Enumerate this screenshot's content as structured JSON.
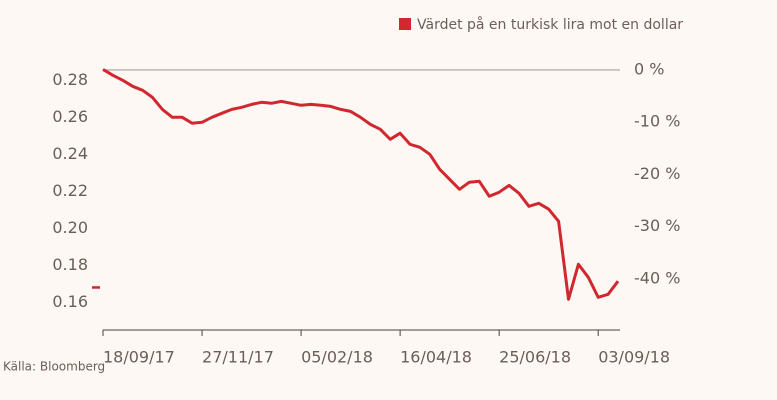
{
  "chart_data": {
    "type": "line",
    "legend": "top-right",
    "source": "Källa: Bloomberg",
    "x": [
      "2017-09-18",
      "2017-09-25",
      "2017-10-02",
      "2017-10-09",
      "2017-10-16",
      "2017-10-23",
      "2017-10-30",
      "2017-11-06",
      "2017-11-13",
      "2017-11-20",
      "2017-11-27",
      "2017-12-04",
      "2017-12-11",
      "2017-12-18",
      "2017-12-25",
      "2018-01-01",
      "2018-01-08",
      "2018-01-15",
      "2018-01-22",
      "2018-01-29",
      "2018-02-05",
      "2018-02-12",
      "2018-02-19",
      "2018-02-26",
      "2018-03-05",
      "2018-03-12",
      "2018-03-19",
      "2018-03-26",
      "2018-04-02",
      "2018-04-09",
      "2018-04-16",
      "2018-04-23",
      "2018-04-30",
      "2018-05-07",
      "2018-05-14",
      "2018-05-21",
      "2018-05-28",
      "2018-06-04",
      "2018-06-11",
      "2018-06-18",
      "2018-06-25",
      "2018-07-02",
      "2018-07-09",
      "2018-07-16",
      "2018-07-23",
      "2018-07-30",
      "2018-08-06",
      "2018-08-13",
      "2018-08-20",
      "2018-08-27",
      "2018-09-03",
      "2018-09-10",
      "2018-09-17"
    ],
    "series": [
      {
        "name": "Värdet på en turkisk lira mot en dollar",
        "color": "#d0282e",
        "values": [
          0.2859,
          0.2827,
          0.28,
          0.2768,
          0.2746,
          0.2708,
          0.2643,
          0.26,
          0.26,
          0.2568,
          0.2573,
          0.26,
          0.2622,
          0.2643,
          0.2654,
          0.267,
          0.2681,
          0.2676,
          0.2686,
          0.2676,
          0.2665,
          0.267,
          0.2665,
          0.2659,
          0.2643,
          0.2632,
          0.26,
          0.2562,
          0.2535,
          0.2481,
          0.2514,
          0.2454,
          0.2438,
          0.24,
          0.2319,
          0.2265,
          0.2211,
          0.2249,
          0.2254,
          0.2173,
          0.2195,
          0.2232,
          0.2189,
          0.2119,
          0.2135,
          0.2103,
          0.2038,
          0.1616,
          0.1805,
          0.1735,
          0.1627,
          0.1643,
          0.1714
        ]
      }
    ],
    "current_marker": 0.168,
    "xlim": [
      "2017-09-18",
      "2018-09-17"
    ],
    "xticks": [
      {
        "value": "2017-09-18",
        "label": "18/09/17"
      },
      {
        "value": "2017-11-27",
        "label": "27/11/17"
      },
      {
        "value": "2018-02-05",
        "label": "05/02/18"
      },
      {
        "value": "2018-04-16",
        "label": "16/04/18"
      },
      {
        "value": "2018-06-25",
        "label": "25/06/18"
      },
      {
        "value": "2018-09-03",
        "label": "03/09/18"
      }
    ],
    "ylim": [
      0.145,
      0.291
    ],
    "yticks": [
      0.16,
      0.18,
      {
        "value": 0.2,
        "label": "0.20"
      },
      0.22,
      0.24,
      0.26,
      0.28
    ],
    "y2lim": [
      -49.8,
      1.9
    ],
    "y2ticks": [
      {
        "value": 0,
        "label": "0 %"
      },
      {
        "value": -10,
        "label": "-10 %"
      },
      {
        "value": -20,
        "label": "-20 %"
      },
      {
        "value": -30,
        "label": "-30 %"
      },
      {
        "value": -40,
        "label": "-40 %"
      }
    ],
    "reference_line": {
      "axis": "y2",
      "value": 0
    }
  }
}
